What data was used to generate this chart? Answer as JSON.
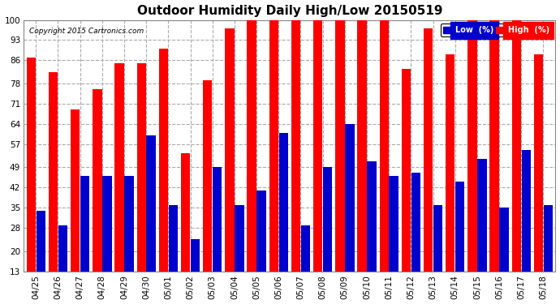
{
  "title": "Outdoor Humidity Daily High/Low 20150519",
  "copyright": "Copyright 2015 Cartronics.com",
  "categories": [
    "04/25",
    "04/26",
    "04/27",
    "04/28",
    "04/29",
    "04/30",
    "05/01",
    "05/02",
    "05/03",
    "05/04",
    "05/05",
    "05/06",
    "05/07",
    "05/08",
    "05/09",
    "05/10",
    "05/11",
    "05/12",
    "05/13",
    "05/14",
    "05/15",
    "05/16",
    "05/17",
    "05/18"
  ],
  "high_values": [
    87,
    82,
    69,
    76,
    85,
    85,
    90,
    54,
    79,
    97,
    100,
    100,
    100,
    100,
    100,
    100,
    100,
    83,
    97,
    88,
    100,
    100,
    100,
    88
  ],
  "low_values": [
    34,
    29,
    46,
    46,
    46,
    60,
    36,
    24,
    49,
    36,
    41,
    61,
    29,
    49,
    64,
    51,
    46,
    47,
    36,
    44,
    52,
    35,
    55,
    36
  ],
  "high_color": "#ff0000",
  "low_color": "#0000cc",
  "bg_color": "#ffffff",
  "grid_color": "#aaaaaa",
  "yticks": [
    13,
    20,
    28,
    35,
    42,
    49,
    57,
    64,
    71,
    78,
    86,
    93,
    100
  ],
  "ymin": 13,
  "ymax": 100,
  "title_fontsize": 11,
  "tick_fontsize": 7.5,
  "legend_low_label": "Low  (%)",
  "legend_high_label": "High  (%)"
}
